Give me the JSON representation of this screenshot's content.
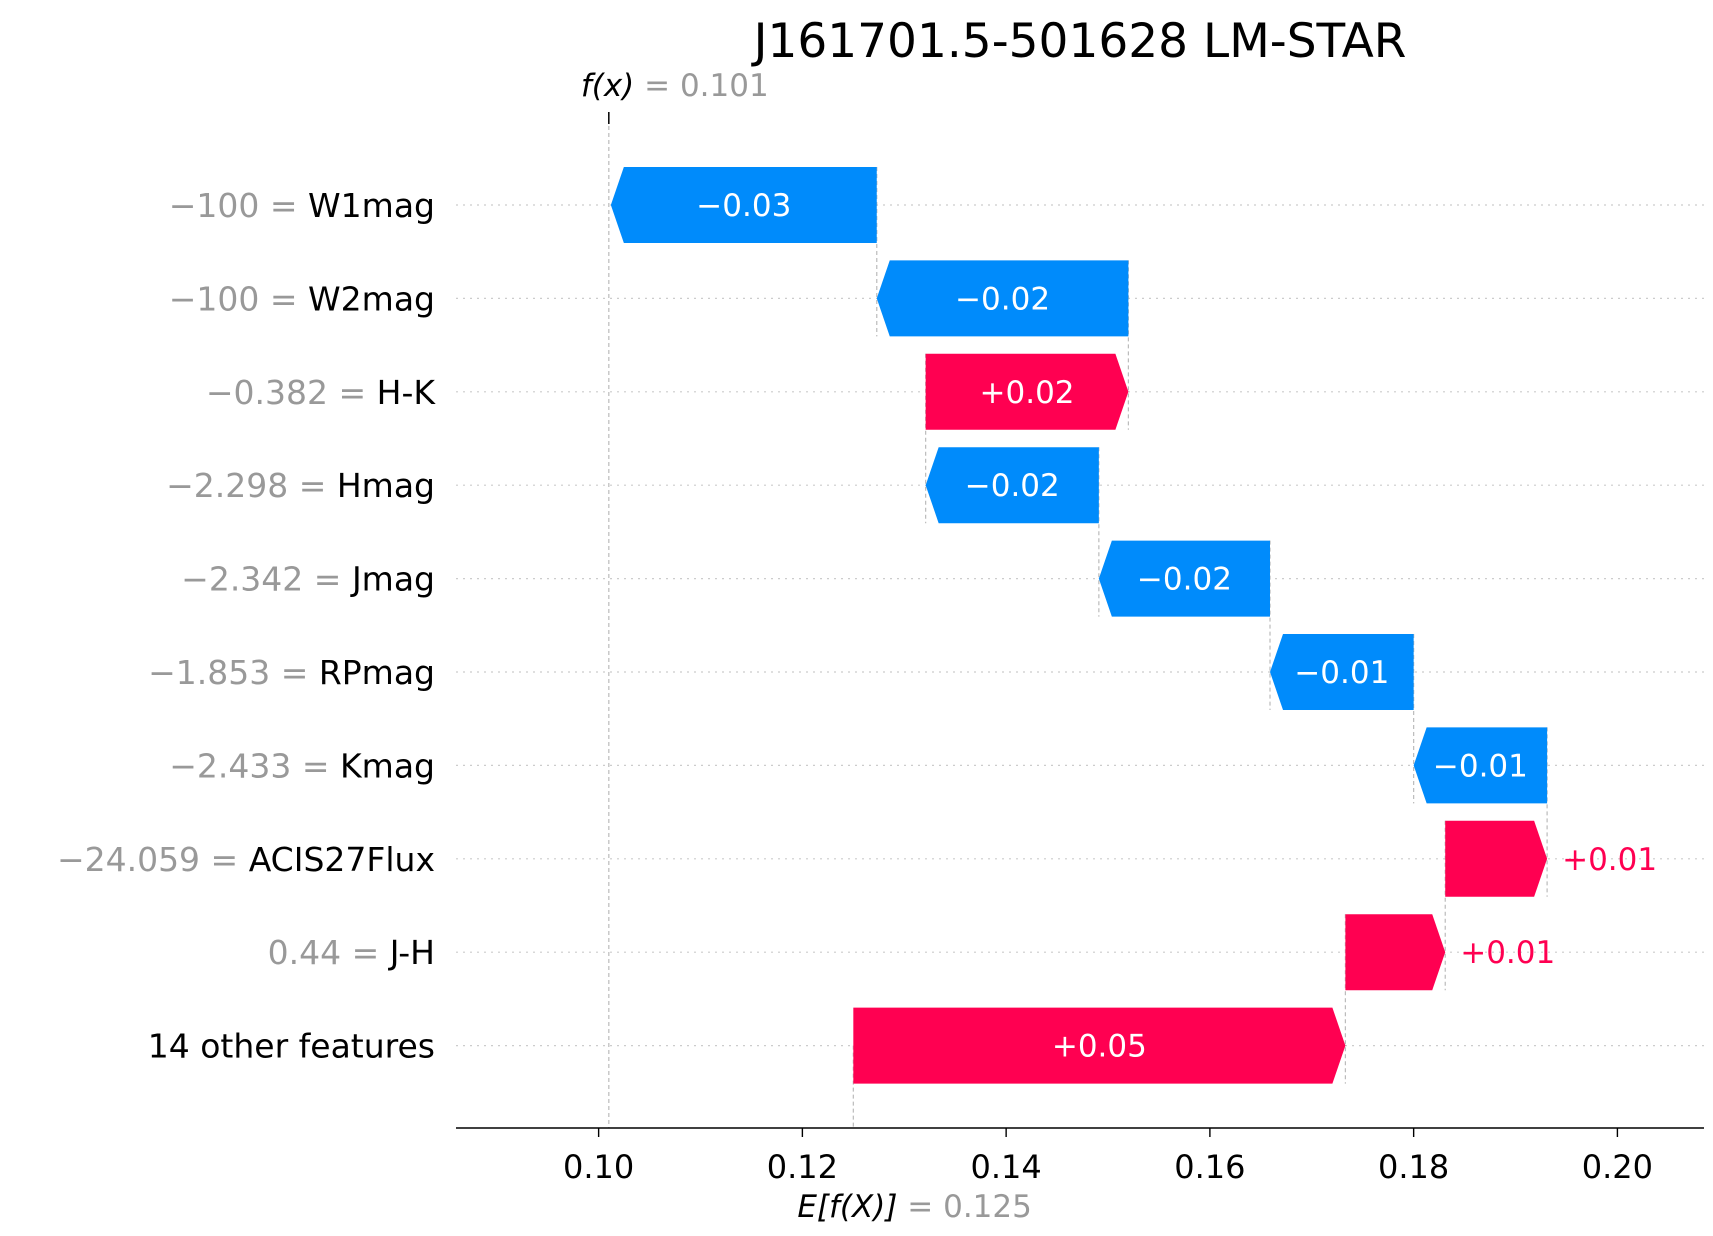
{
  "chart_data": {
    "type": "waterfall",
    "title": "J161701.5-501628 LM-STAR",
    "fx": {
      "label_prefix": "f(x)",
      "eq": "=",
      "value": 0.101,
      "value_text": "0.101"
    },
    "efx": {
      "label_prefix": "E[f(X)]",
      "eq": "=",
      "value": 0.125,
      "value_text": "0.125"
    },
    "xlim": [
      0.086,
      0.2085
    ],
    "xticks": [
      0.1,
      0.12,
      0.14,
      0.16,
      0.18,
      0.2
    ],
    "xtick_labels": [
      "0.10",
      "0.12",
      "0.14",
      "0.16",
      "0.18",
      "0.20"
    ],
    "grid": "horizontal-dotted",
    "features": [
      {
        "value": "−100",
        "name": "W1mag",
        "shap": -0.0261,
        "label": "−0.03"
      },
      {
        "value": "−100",
        "name": "W2mag",
        "shap": -0.0247,
        "label": "−0.02"
      },
      {
        "value": "−0.382",
        "name": "H-K",
        "shap": 0.0199,
        "label": "+0.02"
      },
      {
        "value": "−2.298",
        "name": "Hmag",
        "shap": -0.017,
        "label": "−0.02"
      },
      {
        "value": "−2.342",
        "name": "Jmag",
        "shap": -0.0168,
        "label": "−0.02"
      },
      {
        "value": "−1.853",
        "name": "RPmag",
        "shap": -0.0141,
        "label": "−0.01"
      },
      {
        "value": "−2.433",
        "name": "Kmag",
        "shap": -0.0131,
        "label": "−0.01"
      },
      {
        "value": "−24.059",
        "name": "ACIS27Flux",
        "shap": 0.01,
        "label": "+0.01"
      },
      {
        "value": "0.44",
        "name": "J-H",
        "shap": 0.0098,
        "label": "+0.01"
      },
      {
        "value": "",
        "name": "14 other features",
        "shap": 0.0483,
        "label": "+0.05"
      }
    ],
    "colors": {
      "positive": "#ff0051",
      "negative": "#008bfb",
      "muted": "#999999"
    }
  }
}
